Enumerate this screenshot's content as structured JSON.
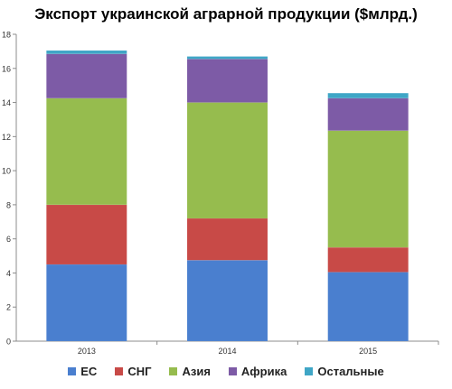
{
  "chart_data": {
    "type": "bar",
    "stacked": true,
    "title": "Экспорт украинской аграрной продукции ($млрд.)",
    "categories": [
      "2013",
      "2014",
      "2015"
    ],
    "ylim": [
      0,
      18
    ],
    "yticks": [
      0,
      2,
      4,
      6,
      8,
      10,
      12,
      14,
      16,
      18
    ],
    "grid": false,
    "legend_position": "bottom",
    "series": [
      {
        "name": "ЕС",
        "color": "#4a7fcf",
        "values": [
          4.5,
          4.75,
          4.05
        ]
      },
      {
        "name": "СНГ",
        "color": "#c84a47",
        "values": [
          3.5,
          2.45,
          1.45
        ]
      },
      {
        "name": "Азия",
        "color": "#96bc4e",
        "values": [
          6.25,
          6.8,
          6.85
        ]
      },
      {
        "name": "Африка",
        "color": "#7d5ba6",
        "values": [
          2.6,
          2.55,
          1.9
        ]
      },
      {
        "name": "Остальные",
        "color": "#3fa6c6",
        "values": [
          0.2,
          0.15,
          0.3
        ]
      }
    ]
  }
}
